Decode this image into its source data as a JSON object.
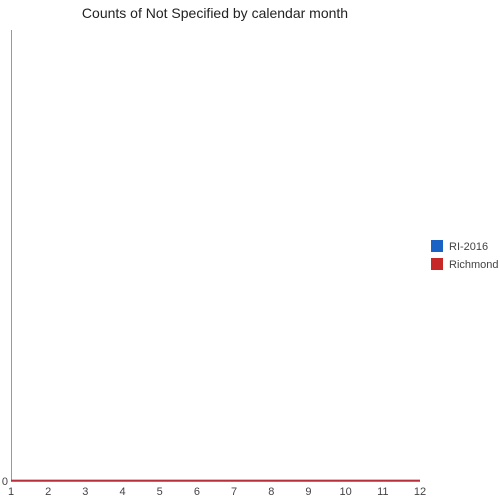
{
  "chart_data": {
    "type": "line",
    "title": "Counts of Not Specified by calendar month",
    "xlabel": "",
    "ylabel": "",
    "x": [
      1,
      2,
      3,
      4,
      5,
      6,
      7,
      8,
      9,
      10,
      11,
      12
    ],
    "x_ticks": [
      "1",
      "2",
      "3",
      "4",
      "5",
      "6",
      "7",
      "8",
      "9",
      "10",
      "11",
      "12"
    ],
    "y_ticks": [
      "0"
    ],
    "xlim": [
      1,
      12
    ],
    "ylim": [
      0,
      1
    ],
    "grid": false,
    "legend_position": "right",
    "series": [
      {
        "name": "RI-2016",
        "color": "#1a63c4",
        "values": [
          0,
          0,
          0,
          0,
          0,
          0,
          0,
          0,
          0,
          0,
          0,
          0
        ]
      },
      {
        "name": "Richmond",
        "color": "#c62828",
        "values": [
          0,
          0,
          0,
          0,
          0,
          0,
          0,
          0,
          0,
          0,
          0,
          0
        ]
      }
    ]
  }
}
